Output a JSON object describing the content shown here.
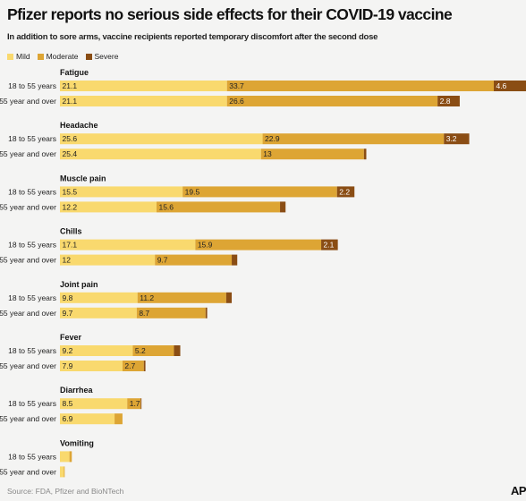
{
  "header": {
    "title": "Pfizer reports no serious side effects for their COVID-19 vaccine",
    "subtitle": "In addition to sore arms, vaccine recipients reported temporary discomfort after the second dose"
  },
  "footer": {
    "source": "Source: FDA, Pfizer and BioNTech",
    "logo": "AP"
  },
  "colors": {
    "mild": "#f9d96e",
    "moderate": "#dda534",
    "severe": "#8a4d14"
  },
  "chart_data": {
    "type": "bar",
    "orientation": "horizontal",
    "stacked": true,
    "unit": "percent",
    "title": "Pfizer reports no serious side effects for their COVID-19 vaccine",
    "subtitle": "In addition to sore arms, vaccine recipients reported temporary discomfort after the second dose",
    "legend": [
      {
        "key": "mild",
        "label": "Mild"
      },
      {
        "key": "moderate",
        "label": "Moderate"
      },
      {
        "key": "severe",
        "label": "Severe"
      }
    ],
    "legend_position": "top-left",
    "groups": [
      {
        "name": "Fatigue",
        "rows": [
          {
            "label": "18 to 55 years",
            "values": [
              21.1,
              33.7,
              4.6
            ]
          },
          {
            "label": "55 year and over",
            "values": [
              21.1,
              26.6,
              2.8
            ]
          }
        ]
      },
      {
        "name": "Headache",
        "rows": [
          {
            "label": "18 to 55 years",
            "values": [
              25.6,
              22.9,
              3.2
            ]
          },
          {
            "label": "55 year and over",
            "values": [
              25.4,
              13,
              0.3
            ]
          }
        ]
      },
      {
        "name": "Muscle pain",
        "rows": [
          {
            "label": "18 to 55 years",
            "values": [
              15.5,
              19.5,
              2.2
            ]
          },
          {
            "label": "55 year and over",
            "values": [
              12.2,
              15.6,
              0.7
            ]
          }
        ]
      },
      {
        "name": "Chills",
        "rows": [
          {
            "label": "18 to 55 years",
            "values": [
              17.1,
              15.9,
              2.1
            ]
          },
          {
            "label": "55 year and over",
            "values": [
              12,
              9.7,
              0.7
            ]
          }
        ]
      },
      {
        "name": "Joint pain",
        "rows": [
          {
            "label": "18 to 55 years",
            "values": [
              9.8,
              11.2,
              0.7
            ]
          },
          {
            "label": "55 year and over",
            "values": [
              9.7,
              8.7,
              0.2
            ]
          }
        ]
      },
      {
        "name": "Fever",
        "rows": [
          {
            "label": "18 to 55 years",
            "values": [
              9.2,
              5.2,
              0.8
            ]
          },
          {
            "label": "55 year and over",
            "values": [
              7.9,
              2.7,
              0.2
            ]
          }
        ]
      },
      {
        "name": "Diarrhea",
        "rows": [
          {
            "label": "18 to 55 years",
            "values": [
              8.5,
              1.7,
              0.1
            ]
          },
          {
            "label": "55 year and over",
            "values": [
              6.9,
              1.0,
              0
            ]
          }
        ]
      },
      {
        "name": "Vomiting",
        "rows": [
          {
            "label": "18 to 55 years",
            "values": [
              1.2,
              0.3,
              0
            ]
          },
          {
            "label": "55 year and over",
            "values": [
              0.5,
              0.1,
              0
            ]
          }
        ]
      }
    ],
    "grid": false,
    "xlabel": "",
    "ylabel": ""
  }
}
